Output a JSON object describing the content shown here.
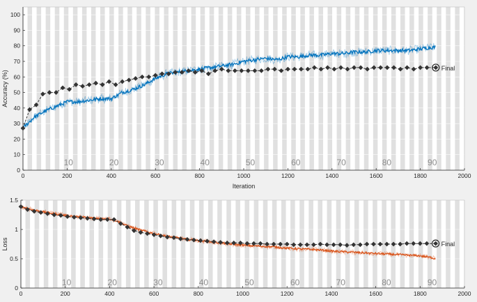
{
  "chart_data": [
    {
      "type": "line",
      "title": "",
      "xlabel": "Iteration",
      "ylabel": "Accuracy (%)",
      "xlim": [
        0,
        2000
      ],
      "ylim": [
        0,
        105
      ],
      "xticks": [
        0,
        200,
        400,
        600,
        800,
        1000,
        1200,
        1400,
        1600,
        1800,
        2000
      ],
      "yticks": [
        0,
        10,
        20,
        30,
        40,
        50,
        60,
        70,
        80,
        90,
        100
      ],
      "grid": true,
      "epoch_bands": {
        "iterations_per_epoch": 20.6,
        "labels": [
          10,
          20,
          30,
          40,
          50,
          60,
          70,
          80,
          90
        ]
      },
      "series": [
        {
          "role": "training",
          "color": "#0072bd",
          "smoothed": [
            [
              0,
              27
            ],
            [
              50,
              34
            ],
            [
              100,
              38
            ],
            [
              150,
              41
            ],
            [
              200,
              44
            ],
            [
              250,
              44
            ],
            [
              300,
              45
            ],
            [
              350,
              46
            ],
            [
              400,
              46
            ],
            [
              450,
              50
            ],
            [
              500,
              52
            ],
            [
              550,
              55
            ],
            [
              600,
              59
            ],
            [
              650,
              62
            ],
            [
              700,
              63
            ],
            [
              750,
              64
            ],
            [
              800,
              65
            ],
            [
              850,
              66
            ],
            [
              900,
              67
            ],
            [
              950,
              68
            ],
            [
              1000,
              70
            ],
            [
              1050,
              71
            ],
            [
              1100,
              72
            ],
            [
              1150,
              71
            ],
            [
              1200,
              73
            ],
            [
              1250,
              73
            ],
            [
              1300,
              74
            ],
            [
              1350,
              74
            ],
            [
              1400,
              75
            ],
            [
              1450,
              75
            ],
            [
              1500,
              76
            ],
            [
              1550,
              76
            ],
            [
              1600,
              77
            ],
            [
              1650,
              77
            ],
            [
              1700,
              77
            ],
            [
              1750,
              77
            ],
            [
              1800,
              78
            ],
            [
              1850,
              79
            ],
            [
              1870,
              79
            ]
          ]
        },
        {
          "role": "validation",
          "color": "#333333",
          "points": [
            [
              0,
              27
            ],
            [
              30,
              39
            ],
            [
              60,
              42
            ],
            [
              90,
              49
            ],
            [
              120,
              50
            ],
            [
              150,
              50
            ],
            [
              180,
              53
            ],
            [
              210,
              52
            ],
            [
              240,
              55
            ],
            [
              270,
              54
            ],
            [
              300,
              55
            ],
            [
              330,
              56
            ],
            [
              360,
              55
            ],
            [
              390,
              57
            ],
            [
              420,
              55
            ],
            [
              450,
              57
            ],
            [
              480,
              58
            ],
            [
              510,
              59
            ],
            [
              540,
              60
            ],
            [
              570,
              60
            ],
            [
              600,
              61
            ],
            [
              630,
              62
            ],
            [
              660,
              62
            ],
            [
              690,
              63
            ],
            [
              720,
              63
            ],
            [
              750,
              64
            ],
            [
              780,
              63
            ],
            [
              810,
              64
            ],
            [
              840,
              62
            ],
            [
              870,
              64
            ],
            [
              900,
              65
            ],
            [
              930,
              64
            ],
            [
              960,
              64
            ],
            [
              990,
              64
            ],
            [
              1020,
              64
            ],
            [
              1050,
              64
            ],
            [
              1080,
              64
            ],
            [
              1110,
              65
            ],
            [
              1140,
              65
            ],
            [
              1170,
              64
            ],
            [
              1200,
              65
            ],
            [
              1230,
              65
            ],
            [
              1260,
              65
            ],
            [
              1290,
              65
            ],
            [
              1320,
              66
            ],
            [
              1350,
              65
            ],
            [
              1380,
              66
            ],
            [
              1410,
              65
            ],
            [
              1440,
              66
            ],
            [
              1470,
              65
            ],
            [
              1500,
              66
            ],
            [
              1530,
              66
            ],
            [
              1560,
              65
            ],
            [
              1590,
              66
            ],
            [
              1620,
              66
            ],
            [
              1650,
              66
            ],
            [
              1680,
              66
            ],
            [
              1710,
              65
            ],
            [
              1740,
              66
            ],
            [
              1770,
              65
            ],
            [
              1800,
              66
            ],
            [
              1830,
              66
            ],
            [
              1870,
              66
            ]
          ],
          "final_label": "Final"
        }
      ]
    },
    {
      "type": "line",
      "title": "",
      "xlabel": "",
      "ylabel": "Loss",
      "xlim": [
        0,
        2000
      ],
      "ylim": [
        0,
        1.5
      ],
      "xticks": [
        0,
        200,
        400,
        600,
        800,
        1000,
        1200,
        1400,
        1600,
        1800,
        2000
      ],
      "yticks": [
        0,
        0.5,
        1,
        1.5
      ],
      "grid": true,
      "epoch_bands": {
        "iterations_per_epoch": 20.6,
        "labels": [
          10,
          20,
          30,
          40,
          50,
          60,
          70,
          80,
          90
        ]
      },
      "series": [
        {
          "role": "training",
          "color": "#d95319",
          "smoothed": [
            [
              0,
              1.39
            ],
            [
              50,
              1.34
            ],
            [
              100,
              1.3
            ],
            [
              150,
              1.27
            ],
            [
              200,
              1.24
            ],
            [
              250,
              1.22
            ],
            [
              300,
              1.2
            ],
            [
              350,
              1.19
            ],
            [
              400,
              1.18
            ],
            [
              430,
              1.15
            ],
            [
              480,
              1.06
            ],
            [
              530,
              1.0
            ],
            [
              600,
              0.93
            ],
            [
              650,
              0.89
            ],
            [
              700,
              0.86
            ],
            [
              750,
              0.83
            ],
            [
              800,
              0.81
            ],
            [
              850,
              0.79
            ],
            [
              900,
              0.77
            ],
            [
              950,
              0.75
            ],
            [
              1000,
              0.73
            ],
            [
              1050,
              0.72
            ],
            [
              1100,
              0.71
            ],
            [
              1150,
              0.7
            ],
            [
              1200,
              0.68
            ],
            [
              1250,
              0.67
            ],
            [
              1300,
              0.66
            ],
            [
              1350,
              0.65
            ],
            [
              1400,
              0.63
            ],
            [
              1450,
              0.62
            ],
            [
              1500,
              0.61
            ],
            [
              1550,
              0.6
            ],
            [
              1600,
              0.59
            ],
            [
              1650,
              0.58
            ],
            [
              1700,
              0.57
            ],
            [
              1750,
              0.56
            ],
            [
              1800,
              0.55
            ],
            [
              1850,
              0.52
            ],
            [
              1870,
              0.5
            ]
          ]
        },
        {
          "role": "validation",
          "color": "#333333",
          "points": [
            [
              0,
              1.39
            ],
            [
              30,
              1.34
            ],
            [
              60,
              1.31
            ],
            [
              90,
              1.29
            ],
            [
              120,
              1.27
            ],
            [
              150,
              1.25
            ],
            [
              180,
              1.24
            ],
            [
              210,
              1.22
            ],
            [
              240,
              1.21
            ],
            [
              270,
              1.2
            ],
            [
              300,
              1.19
            ],
            [
              330,
              1.18
            ],
            [
              360,
              1.17
            ],
            [
              390,
              1.17
            ],
            [
              420,
              1.17
            ],
            [
              450,
              1.1
            ],
            [
              480,
              1.04
            ],
            [
              510,
              0.98
            ],
            [
              540,
              0.95
            ],
            [
              570,
              0.93
            ],
            [
              600,
              0.91
            ],
            [
              630,
              0.89
            ],
            [
              660,
              0.87
            ],
            [
              690,
              0.86
            ],
            [
              720,
              0.84
            ],
            [
              750,
              0.83
            ],
            [
              780,
              0.82
            ],
            [
              810,
              0.81
            ],
            [
              840,
              0.8
            ],
            [
              870,
              0.79
            ],
            [
              900,
              0.78
            ],
            [
              930,
              0.77
            ],
            [
              960,
              0.77
            ],
            [
              990,
              0.77
            ],
            [
              1020,
              0.76
            ],
            [
              1050,
              0.76
            ],
            [
              1080,
              0.76
            ],
            [
              1110,
              0.75
            ],
            [
              1140,
              0.75
            ],
            [
              1170,
              0.75
            ],
            [
              1200,
              0.75
            ],
            [
              1230,
              0.74
            ],
            [
              1260,
              0.74
            ],
            [
              1290,
              0.74
            ],
            [
              1320,
              0.74
            ],
            [
              1350,
              0.75
            ],
            [
              1380,
              0.74
            ],
            [
              1410,
              0.74
            ],
            [
              1440,
              0.74
            ],
            [
              1470,
              0.73
            ],
            [
              1500,
              0.74
            ],
            [
              1530,
              0.74
            ],
            [
              1560,
              0.75
            ],
            [
              1590,
              0.75
            ],
            [
              1620,
              0.75
            ],
            [
              1650,
              0.75
            ],
            [
              1680,
              0.75
            ],
            [
              1710,
              0.75
            ],
            [
              1740,
              0.76
            ],
            [
              1770,
              0.76
            ],
            [
              1800,
              0.76
            ],
            [
              1830,
              0.76
            ],
            [
              1870,
              0.76
            ]
          ],
          "final_label": "Final"
        }
      ]
    }
  ]
}
